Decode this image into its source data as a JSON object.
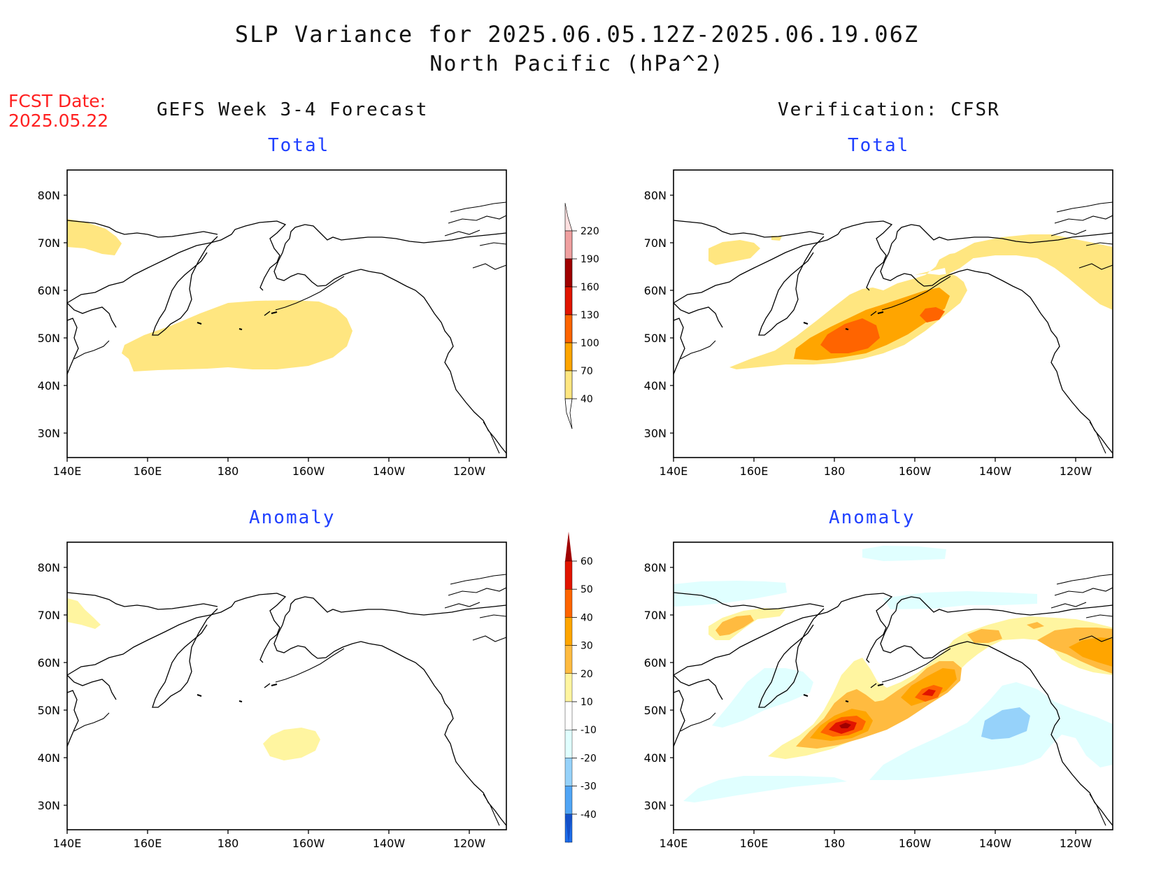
{
  "title": {
    "line1": "SLP Variance for 2025.06.05.12Z-2025.06.19.06Z",
    "line2": "North Pacific (hPa^2)"
  },
  "fcst_date": {
    "label": "FCST Date:",
    "value": "2025.05.22"
  },
  "columns": {
    "left": "GEFS Week 3-4 Forecast",
    "right": "Verification: CFSR"
  },
  "panels": {
    "top_left": "Total",
    "top_right": "Total",
    "bottom_left": "Anomaly",
    "bottom_right": "Anomaly"
  },
  "axes": {
    "lon_labels": [
      "140E",
      "160E",
      "180",
      "160W",
      "140W",
      "120W"
    ],
    "lat_labels": [
      "30N",
      "40N",
      "50N",
      "60N",
      "70N",
      "80N"
    ]
  },
  "colorbar_total": {
    "labels": [
      "40",
      "70",
      "100",
      "130",
      "160",
      "190",
      "220"
    ],
    "colors": [
      "#ffe680",
      "#ffa500",
      "#ff6400",
      "#e11400",
      "#a00000",
      "#f0a0a0",
      "#ffe0e0"
    ]
  },
  "colorbar_anomaly": {
    "labels": [
      "60",
      "50",
      "40",
      "30",
      "20",
      "10",
      "-10",
      "-20",
      "-30",
      "-40"
    ],
    "colors": [
      "#a00000",
      "#e11400",
      "#ff6400",
      "#ffa500",
      "#ffbb40",
      "#fff5a0",
      "#ffffff",
      "#e0ffff",
      "#96d2fa",
      "#50a5f5",
      "#1e6eeb",
      "#1450c8"
    ]
  },
  "colors": {
    "level1": "#ffe680",
    "level2": "#ffa500",
    "level3": "#ff6400",
    "anom_pos1": "#fff5a0",
    "anom_pos2": "#ffbb40",
    "anom_pos3": "#ffa500",
    "anom_pos4": "#ff6400",
    "anom_pos5": "#e11400",
    "anom_pos6": "#a00000",
    "anom_neg1": "#e0ffff",
    "anom_neg2": "#96d2fa"
  }
}
